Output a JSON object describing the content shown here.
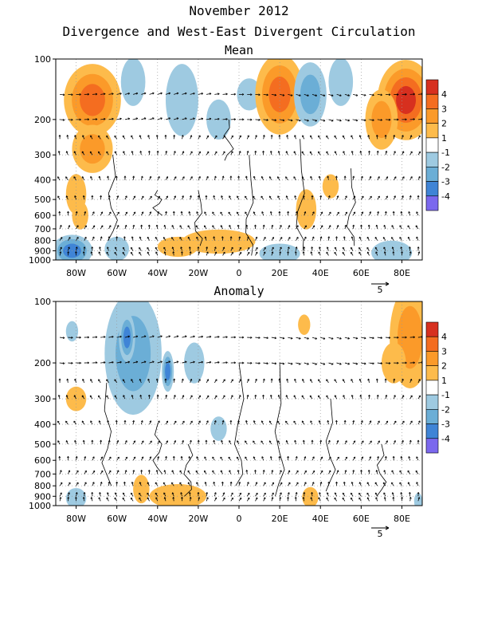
{
  "title": "November 2012",
  "subtitle": "Divergence and West-East Divergent Circulation",
  "vector_scale_label": "5",
  "chart_data": [
    {
      "type": "heatmap",
      "title": "Mean",
      "xticks": [
        "80W",
        "60W",
        "40W",
        "20W",
        "0",
        "20E",
        "40E",
        "60E",
        "80E"
      ],
      "xtick_values": [
        -80,
        -60,
        -40,
        -20,
        0,
        20,
        40,
        60,
        80
      ],
      "yticks": [
        "100",
        "200",
        "300",
        "400",
        "500",
        "600",
        "700",
        "800",
        "900",
        "1000"
      ],
      "ytick_values": [
        100,
        200,
        300,
        400,
        500,
        600,
        700,
        800,
        900,
        1000
      ],
      "xlim": [
        -90,
        90
      ],
      "ylim": [
        1000,
        100
      ],
      "y_scale": "log",
      "colorbar": {
        "levels": [
          "4",
          "3",
          "2",
          "1",
          "-1",
          "-2",
          "-3",
          "-4"
        ],
        "colors": [
          "#d7301f",
          "#f46d20",
          "#fb9a29",
          "#fdbb4b",
          "#ffffff",
          "#9ecae1",
          "#6baed6",
          "#3f84d6",
          "#2962c8",
          "#7b68ee"
        ]
      },
      "blobs": [
        {
          "lon": -72,
          "p": 160,
          "v": 3,
          "w": 14,
          "h": 0.18
        },
        {
          "lon": -72,
          "p": 280,
          "v": 2,
          "w": 10,
          "h": 0.12
        },
        {
          "lon": -52,
          "p": 130,
          "v": -1,
          "w": 6,
          "h": 0.12
        },
        {
          "lon": -28,
          "p": 160,
          "v": -1,
          "w": 8,
          "h": 0.18
        },
        {
          "lon": -10,
          "p": 200,
          "v": -1,
          "w": 6,
          "h": 0.1
        },
        {
          "lon": 5,
          "p": 150,
          "v": -1,
          "w": 6,
          "h": 0.08
        },
        {
          "lon": 20,
          "p": 150,
          "v": 3,
          "w": 12,
          "h": 0.2
        },
        {
          "lon": 35,
          "p": 150,
          "v": -2,
          "w": 8,
          "h": 0.16
        },
        {
          "lon": 50,
          "p": 130,
          "v": -1,
          "w": 6,
          "h": 0.12
        },
        {
          "lon": 82,
          "p": 160,
          "v": 4,
          "w": 14,
          "h": 0.2
        },
        {
          "lon": 70,
          "p": 200,
          "v": 2,
          "w": 8,
          "h": 0.15
        },
        {
          "lon": -80,
          "p": 470,
          "v": 1,
          "w": 5,
          "h": 0.1
        },
        {
          "lon": -78,
          "p": 600,
          "v": 1,
          "w": 4,
          "h": 0.07
        },
        {
          "lon": 33,
          "p": 560,
          "v": 1,
          "w": 5,
          "h": 0.1
        },
        {
          "lon": 45,
          "p": 430,
          "v": 1,
          "w": 4,
          "h": 0.06
        },
        {
          "lon": -10,
          "p": 810,
          "v": 1,
          "w": 18,
          "h": 0.06
        },
        {
          "lon": -30,
          "p": 860,
          "v": 1,
          "w": 10,
          "h": 0.05
        },
        {
          "lon": -82,
          "p": 900,
          "v": -3,
          "w": 10,
          "h": 0.08
        },
        {
          "lon": -60,
          "p": 880,
          "v": -1,
          "w": 6,
          "h": 0.06
        },
        {
          "lon": 20,
          "p": 930,
          "v": -1,
          "w": 10,
          "h": 0.05
        },
        {
          "lon": 75,
          "p": 920,
          "v": -1,
          "w": 10,
          "h": 0.06
        }
      ]
    },
    {
      "type": "heatmap",
      "title": "Anomaly",
      "xticks": [
        "80W",
        "60W",
        "40W",
        "20W",
        "0",
        "20E",
        "40E",
        "60E",
        "80E"
      ],
      "xtick_values": [
        -80,
        -60,
        -40,
        -20,
        0,
        20,
        40,
        60,
        80
      ],
      "yticks": [
        "100",
        "200",
        "300",
        "400",
        "500",
        "600",
        "700",
        "800",
        "900",
        "1000"
      ],
      "ytick_values": [
        100,
        200,
        300,
        400,
        500,
        600,
        700,
        800,
        900,
        1000
      ],
      "xlim": [
        -90,
        90
      ],
      "ylim": [
        1000,
        100
      ],
      "y_scale": "log",
      "colorbar": {
        "levels": [
          "4",
          "3",
          "2",
          "1",
          "-1",
          "-2",
          "-3",
          "-4"
        ],
        "colors": [
          "#d7301f",
          "#f46d20",
          "#fb9a29",
          "#fdbb4b",
          "#ffffff",
          "#9ecae1",
          "#6baed6",
          "#3f84d6",
          "#2962c8",
          "#7b68ee"
        ]
      },
      "blobs": [
        {
          "lon": -52,
          "p": 180,
          "v": -2,
          "w": 14,
          "h": 0.3
        },
        {
          "lon": -55,
          "p": 150,
          "v": -3,
          "w": 4,
          "h": 0.12
        },
        {
          "lon": -35,
          "p": 220,
          "v": -3,
          "w": 3,
          "h": 0.1
        },
        {
          "lon": -22,
          "p": 200,
          "v": -1,
          "w": 5,
          "h": 0.1
        },
        {
          "lon": -82,
          "p": 140,
          "v": -1,
          "w": 3,
          "h": 0.05
        },
        {
          "lon": -80,
          "p": 300,
          "v": 1,
          "w": 5,
          "h": 0.06
        },
        {
          "lon": -10,
          "p": 420,
          "v": -1,
          "w": 4,
          "h": 0.06
        },
        {
          "lon": 32,
          "p": 130,
          "v": 1,
          "w": 3,
          "h": 0.05
        },
        {
          "lon": 84,
          "p": 150,
          "v": 2,
          "w": 10,
          "h": 0.25
        },
        {
          "lon": 76,
          "p": 200,
          "v": 1,
          "w": 6,
          "h": 0.1
        },
        {
          "lon": -30,
          "p": 900,
          "v": 1,
          "w": 14,
          "h": 0.06
        },
        {
          "lon": -48,
          "p": 830,
          "v": 1,
          "w": 4,
          "h": 0.07
        },
        {
          "lon": 35,
          "p": 910,
          "v": 1,
          "w": 4,
          "h": 0.05
        },
        {
          "lon": -80,
          "p": 920,
          "v": -1,
          "w": 5,
          "h": 0.05
        },
        {
          "lon": 88,
          "p": 950,
          "v": -1,
          "w": 2,
          "h": 0.04
        }
      ]
    }
  ]
}
